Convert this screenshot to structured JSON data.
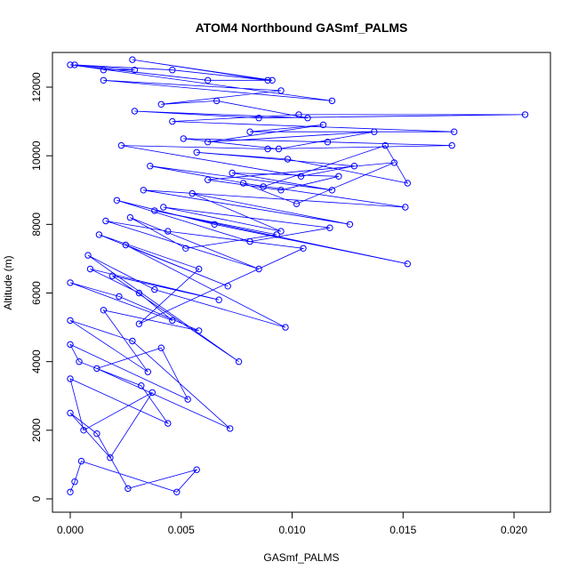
{
  "chart_data": {
    "type": "scatter",
    "title": "ATOM4 Northbound GASmf_PALMS",
    "xlabel": "GASmf_PALMS",
    "ylabel": "Altitude (m)",
    "xlim": [
      0,
      0.0208
    ],
    "ylim": [
      0,
      12700
    ],
    "x_ticks": [
      0,
      0.005,
      0.01,
      0.015,
      0.02
    ],
    "x_tick_labels": [
      "0.000",
      "0.005",
      "0.010",
      "0.015",
      "0.020"
    ],
    "y_ticks": [
      0,
      2000,
      4000,
      6000,
      8000,
      10000,
      12000
    ],
    "y_tick_labels": [
      "0",
      "2000",
      "4000",
      "6000",
      "8000",
      "10000",
      "12000"
    ],
    "grid": false,
    "legend": "none",
    "series": [
      {
        "connected": true,
        "marker": "open-circle",
        "color": "#0000ff",
        "x": [
          0,
          0.0002,
          0.0005,
          0.0048,
          0.0057,
          0.0026,
          0.0012,
          0,
          0.0018,
          0.0037,
          0.0006,
          0,
          0.0044,
          0.0032,
          0.0004,
          0,
          0.0053,
          0.0041,
          0.0012,
          0.0072,
          0.0028,
          0,
          0.0035,
          0.0015,
          0.0058,
          0.0022,
          0,
          0.0046,
          0.0031,
          0.0009,
          0.0067,
          0.0019,
          0.0076,
          0.0008,
          0.0038,
          0.0097,
          0.0025,
          0.0071,
          0.0013,
          0.0058,
          0.0031,
          0.0105,
          0.0044,
          0.0016,
          0.0085,
          0.0027,
          0.0052,
          0.0093,
          0.0038,
          0.0152,
          0.0065,
          0.0021,
          0.0081,
          0.0117,
          0.0042,
          0.0095,
          0.0055,
          0.0126,
          0.0033,
          0.0151,
          0.0078,
          0.0102,
          0.0146,
          0.0062,
          0.0095,
          0.0121,
          0.0073,
          0.0118,
          0.0036,
          0.0087,
          0.0142,
          0.0152,
          0.0098,
          0.0057,
          0.0128,
          0.0104,
          0.0023,
          0.0089,
          0.0172,
          0.0116,
          0.0051,
          0.0094,
          0.0137,
          0.0062,
          0.0114,
          0.0081,
          0.0173,
          0.0046,
          0.0103,
          0.0205,
          0.0085,
          0.0029,
          0.0107,
          0.0066,
          0.0041,
          0.0095,
          0.0015,
          0.0118,
          0,
          0.0062,
          0.0091,
          0.0028,
          0.0089,
          0.0046,
          0.0002,
          0.0029,
          0.0015
        ],
        "y": [
          200,
          500,
          1100,
          200,
          850,
          300,
          1900,
          2500,
          1200,
          3100,
          2000,
          3500,
          2200,
          3300,
          4000,
          4500,
          2900,
          4400,
          3800,
          2050,
          4600,
          5200,
          3700,
          5500,
          4900,
          5900,
          6300,
          5200,
          6000,
          6700,
          5800,
          6500,
          4000,
          7100,
          6100,
          5000,
          7400,
          6200,
          7700,
          6700,
          5100,
          7300,
          7800,
          8100,
          6700,
          8200,
          7300,
          7700,
          8400,
          6850,
          8000,
          8700,
          7500,
          7900,
          8500,
          7800,
          8900,
          8000,
          9000,
          8500,
          9200,
          8600,
          9800,
          9300,
          9000,
          9400,
          9500,
          9000,
          9700,
          9100,
          10300,
          9200,
          9900,
          10100,
          9700,
          9400,
          10300,
          10200,
          10300,
          10400,
          10500,
          10200,
          10700,
          10400,
          10900,
          10700,
          10700,
          11000,
          11200,
          11200,
          11100,
          11300,
          11100,
          11600,
          11500,
          11900,
          12200,
          11600,
          12650,
          12200,
          12200,
          12800,
          12200,
          12500,
          12650,
          12500,
          12500
        ]
      }
    ]
  }
}
